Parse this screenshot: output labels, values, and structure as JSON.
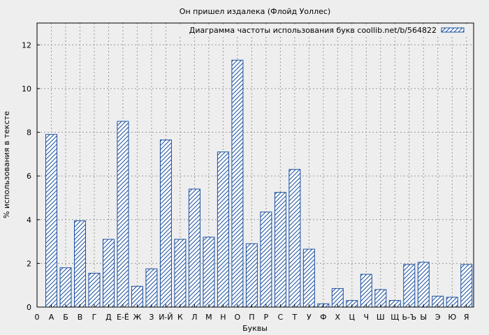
{
  "chart_data": {
    "type": "bar",
    "title": "Он пришел издалека (Флойд Уоллес)",
    "xlabel": "Буквы",
    "ylabel": "% использования в тексте",
    "legend": "Диаграмма частоты использования букв coollib.net/b/564822",
    "legend_position": "top-right",
    "grid": true,
    "ylim": [
      0,
      13
    ],
    "yticks": [
      0,
      2,
      4,
      6,
      8,
      10,
      12
    ],
    "x_start_label": "0",
    "categories": [
      "А",
      "Б",
      "В",
      "Г",
      "Д",
      "Е-Ё",
      "Ж",
      "З",
      "И-Й",
      "К",
      "Л",
      "М",
      "Н",
      "О",
      "П",
      "Р",
      "С",
      "Т",
      "У",
      "Ф",
      "Х",
      "Ц",
      "Ч",
      "Ш",
      "Щ",
      "Ь-Ъ",
      "Ы",
      "Э",
      "Ю",
      "Я"
    ],
    "values": [
      7.9,
      1.8,
      3.95,
      1.55,
      3.1,
      8.5,
      0.95,
      1.75,
      7.65,
      3.1,
      5.4,
      3.2,
      7.1,
      11.3,
      2.9,
      4.35,
      5.25,
      6.3,
      2.65,
      0.15,
      0.85,
      0.3,
      1.5,
      0.8,
      0.3,
      1.95,
      2.05,
      0.5,
      0.45,
      1.95
    ],
    "colors": {
      "bar": "#1a4fa0",
      "grid": "#999999",
      "background": "#eeeeee"
    }
  }
}
